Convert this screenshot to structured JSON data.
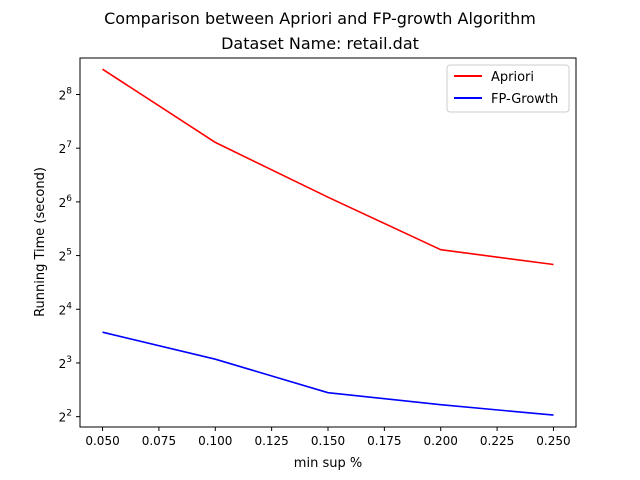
{
  "chart_data": {
    "type": "line",
    "title": "Comparison between Apriori and FP-growth Algorithm",
    "subtitle": "Dataset Name: retail.dat",
    "xlabel": "min sup %",
    "ylabel": "Running Time (second)",
    "x": [
      0.05,
      0.1,
      0.15,
      0.2,
      0.25
    ],
    "x_ticks": [
      0.05,
      0.075,
      0.1,
      0.125,
      0.15,
      0.175,
      0.2,
      0.225,
      0.25
    ],
    "x_tick_labels": [
      "0.050",
      "0.075",
      "0.100",
      "0.125",
      "0.150",
      "0.175",
      "0.200",
      "0.225",
      "0.250"
    ],
    "xlim": [
      0.04,
      0.26
    ],
    "y_scale": "log2",
    "y_tick_exponents": [
      2,
      3,
      4,
      5,
      6,
      7,
      8
    ],
    "y_tick_base": "2",
    "ylim": [
      3.5,
      410
    ],
    "grid": false,
    "legend_position": "top-right",
    "series": [
      {
        "name": "Apriori",
        "color": "#ff0000",
        "values": [
          355,
          138,
          68,
          34.5,
          28.5
        ]
      },
      {
        "name": "FP-Growth",
        "color": "#0000ff",
        "values": [
          11.9,
          8.4,
          5.45,
          4.67,
          4.08
        ]
      }
    ]
  }
}
